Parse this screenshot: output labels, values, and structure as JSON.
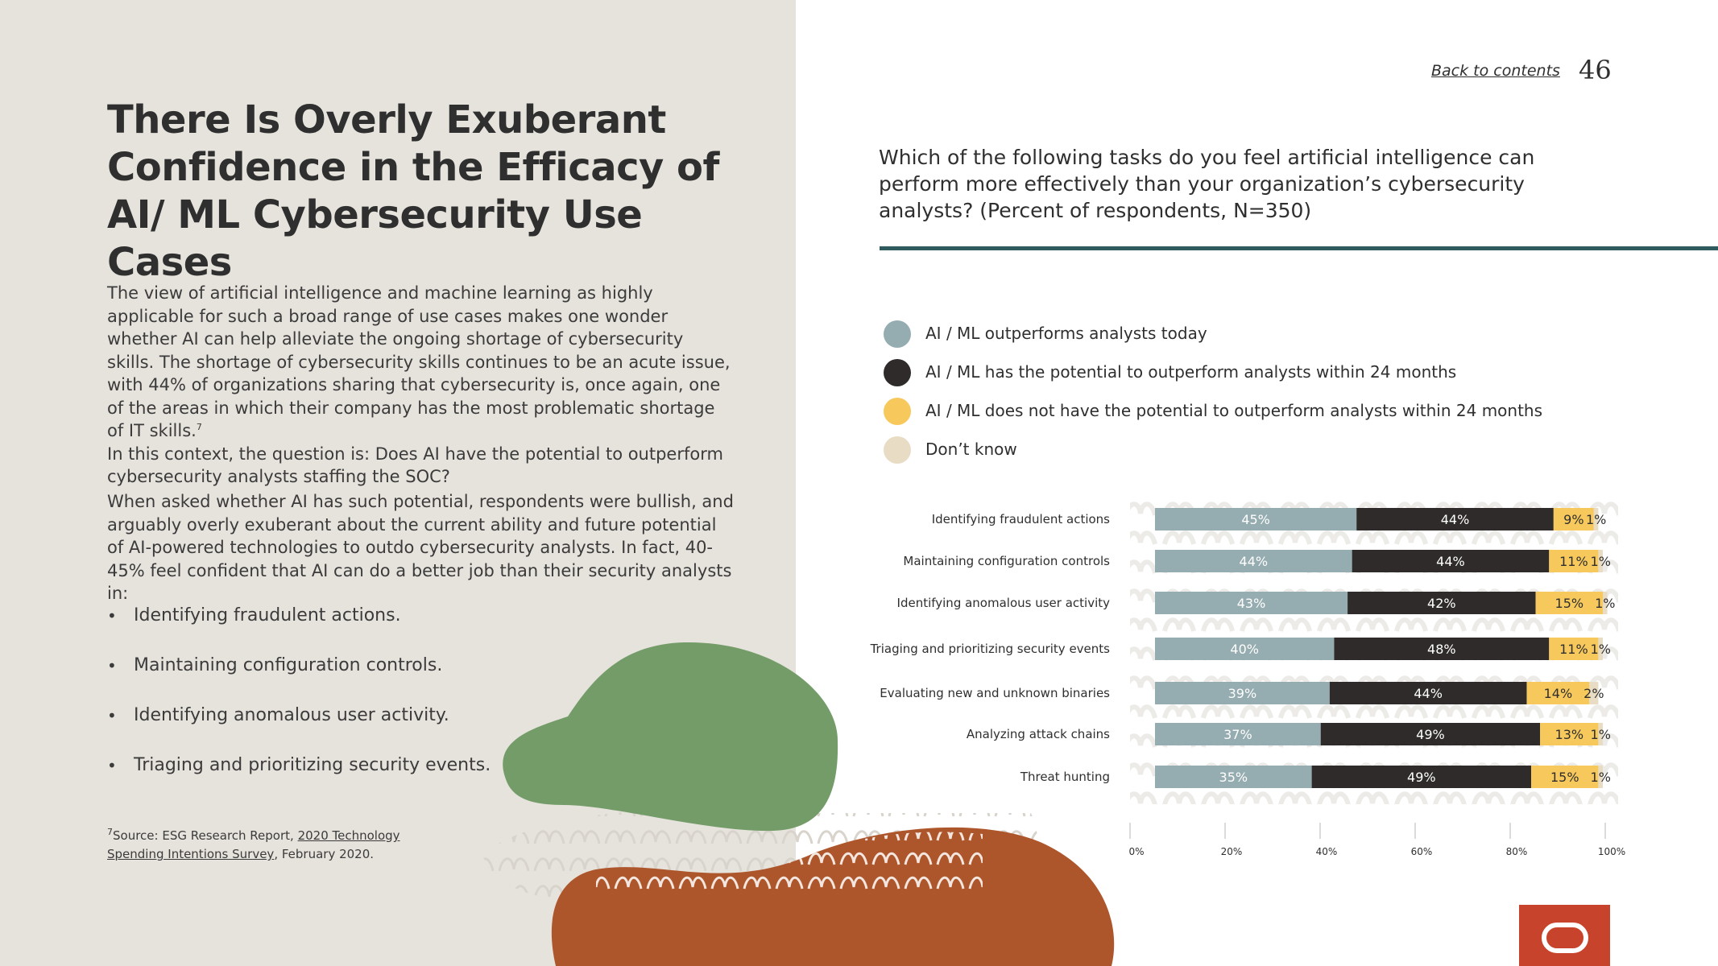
{
  "page": {
    "title": "There Is Overly Exuberant Confidence in the Efficacy of AI/ ML Cybersecurity Use Cases",
    "back_link": "Back to contents",
    "page_number": "46"
  },
  "body": {
    "para1": "The view of artificial intelligence and machine learning as highly applicable for such a broad range of use cases makes one wonder whether AI can help alleviate the ongoing shortage of cybersecurity skills. The shortage of cybersecurity skills continues to be an acute issue, with 44% of organizations sharing that cybersecurity is, once again, one of the areas in which their company has the most problematic shortage of IT skills.",
    "para1_sup": "7",
    "para1_tail": "In this context, the question is: Does AI have the potential to outperform cybersecurity analysts staffing the SOC?",
    "para2": "When asked whether AI has such potential, respondents were bullish, and arguably overly exuberant about the current ability and future potential of AI-powered technologies to outdo cybersecurity analysts. In fact, 40-45% feel confident that AI can do a better job than their security analysts in:",
    "bullet_glyph": "•",
    "bullets": [
      "Identifying fraudulent actions.",
      "Maintaining configuration controls.",
      "Identifying anomalous user activity.",
      "Triaging and prioritizing security events."
    ]
  },
  "footnote": {
    "marker": "7",
    "prefix": "Source: ESG Research Report, ",
    "link": "2020 Technology Spending Intentions Survey",
    "suffix": ", February 2020."
  },
  "question": "Which of the following tasks do you feel artificial intelligence can perform more effectively than your organization’s cybersecurity analysts? (Percent of respondents, N=350)",
  "colors": {
    "today": "#95acb0",
    "potential": "#2e2b2a",
    "not_potential": "#f7c95c",
    "dont_know": "#e8dcc4",
    "rule": "#2f5a5e",
    "green_shape": "#739c68",
    "orange_shape": "#ae562b",
    "logo": "#c7432b"
  },
  "chart_data": {
    "type": "bar",
    "orientation": "horizontal",
    "stacked": true,
    "categories": [
      "Identifying fraudulent actions",
      "Maintaining configuration controls",
      "Identifying anomalous user activity",
      "Triaging and prioritizing security events",
      "Evaluating new and unknown binaries",
      "Analyzing attack chains",
      "Threat hunting"
    ],
    "series": [
      {
        "name": "AI / ML outperforms analysts today",
        "color": "#95acb0",
        "label_color": "#ffffff",
        "values": [
          45,
          44,
          43,
          40,
          39,
          37,
          35
        ]
      },
      {
        "name": "AI / ML has the potential to outperform analysts within 24 months",
        "color": "#2e2b2a",
        "label_color": "#ffffff",
        "values": [
          44,
          44,
          42,
          48,
          44,
          49,
          49
        ]
      },
      {
        "name": "AI / ML does not have the potential to outperform analysts within 24 months",
        "color": "#f7c95c",
        "label_color": "#2f2f2f",
        "values": [
          9,
          11,
          15,
          11,
          14,
          13,
          15
        ]
      },
      {
        "name": "Don’t know",
        "color": "#e8dcc4",
        "label_color": "#2f2f2f",
        "values": [
          1,
          1,
          1,
          1,
          2,
          1,
          1
        ]
      }
    ],
    "xlim": [
      0,
      100
    ],
    "x_ticks": [
      "0%",
      "20%",
      "40%",
      "60%",
      "80%",
      "100%"
    ],
    "value_suffix": "%",
    "legend_position": "top"
  }
}
